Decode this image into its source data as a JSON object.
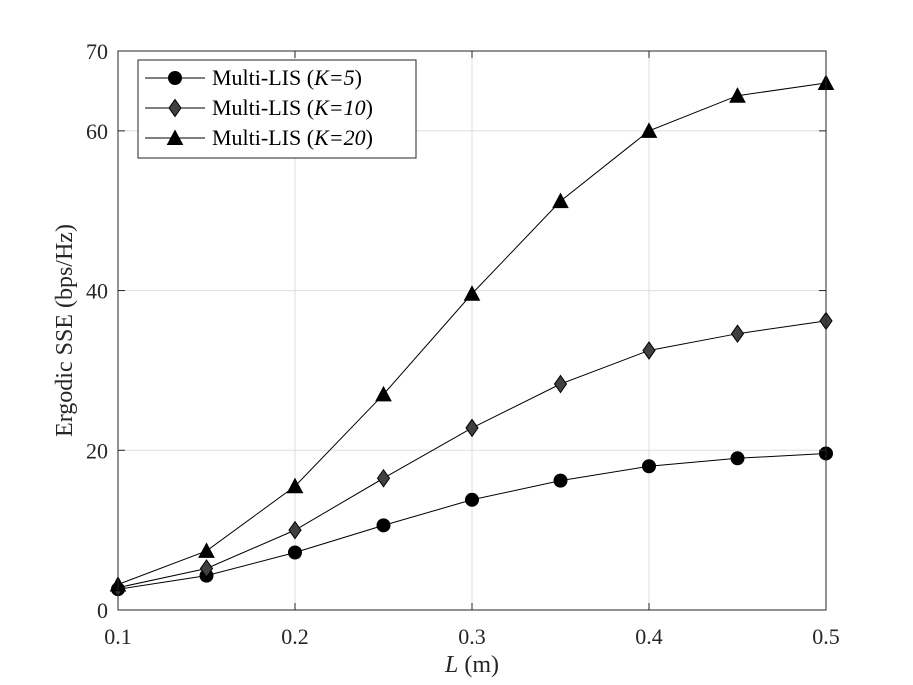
{
  "chart_data": {
    "type": "line",
    "xlabel": {
      "var": "L",
      "unit": " (m)"
    },
    "ylabel": "Ergodic SSE (bps/Hz)",
    "xlim": [
      0.1,
      0.5
    ],
    "ylim": [
      0,
      70
    ],
    "xticks": [
      "0.1",
      "0.2",
      "0.3",
      "0.4",
      "0.5"
    ],
    "yticks": [
      "0",
      "20",
      "40",
      "60",
      "70"
    ],
    "grid": true,
    "legend_position": "top-left",
    "x": [
      0.1,
      0.15,
      0.2,
      0.25,
      0.3,
      0.35,
      0.4,
      0.45,
      0.5
    ],
    "series": [
      {
        "name": "Multi-LIS (K=5)",
        "legend_prefix": "Multi-LIS (",
        "legend_var": "K=5",
        "legend_suffix": ")",
        "marker": "circle",
        "values": [
          2.6,
          4.3,
          7.2,
          10.6,
          13.8,
          16.2,
          18.0,
          19.0,
          19.6
        ]
      },
      {
        "name": "Multi-LIS (K=10)",
        "legend_prefix": "Multi-LIS (",
        "legend_var": "K=10",
        "legend_suffix": ")",
        "marker": "diamond",
        "values": [
          2.8,
          5.2,
          10.0,
          16.5,
          22.8,
          28.3,
          32.5,
          34.6,
          36.2
        ]
      },
      {
        "name": "Multi-LIS (K=20)",
        "legend_prefix": "Multi-LIS (",
        "legend_var": "K=20",
        "legend_suffix": ")",
        "marker": "triangle",
        "values": [
          3.2,
          7.4,
          15.5,
          27.0,
          39.6,
          51.2,
          60.0,
          64.4,
          66.0
        ]
      }
    ],
    "colors": {
      "line": "#000000",
      "marker": "#000000",
      "grid": "#dedede",
      "axis": "#262626"
    }
  }
}
